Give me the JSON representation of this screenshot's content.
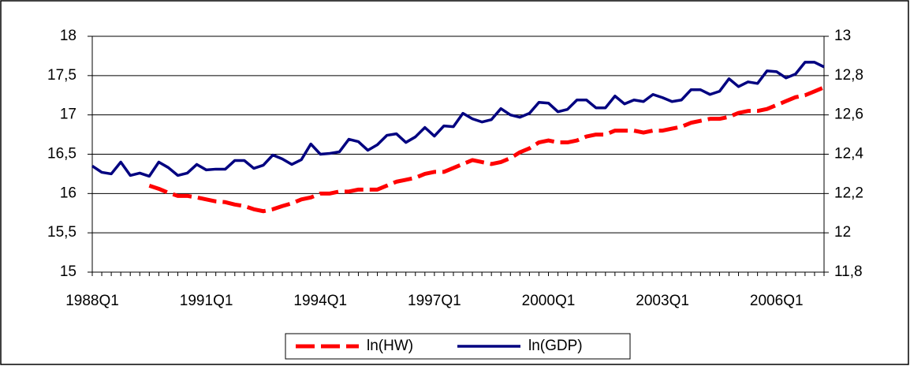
{
  "chart_data": {
    "type": "line",
    "categories": [
      "1988Q1",
      null,
      null,
      null,
      null,
      null,
      null,
      null,
      null,
      null,
      null,
      null,
      "1991Q1",
      null,
      null,
      null,
      null,
      null,
      null,
      null,
      null,
      null,
      null,
      null,
      "1994Q1",
      null,
      null,
      null,
      null,
      null,
      null,
      null,
      null,
      null,
      null,
      null,
      "1997Q1",
      null,
      null,
      null,
      null,
      null,
      null,
      null,
      null,
      null,
      null,
      null,
      "2000Q1",
      null,
      null,
      null,
      null,
      null,
      null,
      null,
      null,
      null,
      null,
      null,
      "2003Q1",
      null,
      null,
      null,
      null,
      null,
      null,
      null,
      null,
      null,
      null,
      null,
      "2006Q1",
      null,
      null,
      null,
      null,
      null
    ],
    "series": [
      {
        "name": "ln(HW)",
        "color": "#ff0000",
        "axis": "y2",
        "dashed": true,
        "values": [
          null,
          null,
          null,
          null,
          null,
          null,
          12.24,
          12.224,
          12.204,
          12.188,
          12.188,
          12.18,
          12.17,
          12.16,
          12.156,
          12.144,
          12.136,
          12.12,
          12.11,
          12.12,
          12.136,
          12.15,
          12.17,
          12.18,
          12.2,
          12.2,
          12.21,
          12.21,
          12.22,
          12.22,
          12.22,
          12.24,
          12.26,
          12.27,
          12.28,
          12.3,
          12.31,
          12.31,
          12.33,
          12.35,
          12.37,
          12.36,
          12.35,
          12.36,
          12.38,
          12.41,
          12.43,
          12.46,
          12.47,
          12.46,
          12.46,
          12.47,
          12.49,
          12.5,
          12.5,
          12.52,
          12.52,
          12.52,
          12.51,
          12.52,
          12.52,
          12.53,
          12.54,
          12.56,
          12.57,
          12.58,
          12.58,
          12.59,
          12.61,
          12.62,
          12.62,
          12.63,
          12.65,
          12.67,
          12.69,
          12.7,
          12.72,
          12.74
        ]
      },
      {
        "name": "ln(GDP)",
        "color": "#000080",
        "values": [
          16.35,
          16.27,
          16.25,
          16.4,
          16.23,
          16.26,
          16.22,
          16.4,
          16.33,
          16.23,
          16.26,
          16.37,
          16.3,
          16.31,
          16.31,
          16.42,
          16.42,
          16.32,
          16.36,
          16.49,
          16.44,
          16.37,
          16.43,
          16.63,
          16.5,
          16.51,
          16.53,
          16.69,
          16.66,
          16.55,
          16.62,
          16.74,
          16.76,
          16.65,
          16.72,
          16.84,
          16.73,
          16.86,
          16.85,
          17.02,
          16.95,
          16.91,
          16.94,
          17.08,
          17.0,
          16.97,
          17.02,
          17.16,
          17.15,
          17.04,
          17.07,
          17.19,
          17.19,
          17.09,
          17.09,
          17.24,
          17.14,
          17.19,
          17.17,
          17.26,
          17.22,
          17.17,
          17.19,
          17.32,
          17.32,
          17.26,
          17.3,
          17.46,
          17.36,
          17.42,
          17.4,
          17.56,
          17.55,
          17.47,
          17.52,
          17.67,
          17.67,
          17.61
        ]
      }
    ],
    "ylim": [
      15,
      18
    ],
    "yticks": [
      15,
      {
        "value": 15.5,
        "label": "15,5"
      },
      16,
      {
        "value": 16.5,
        "label": "16,5"
      },
      17,
      {
        "value": 17.5,
        "label": "17,5"
      },
      18
    ],
    "y2lim": [
      11.8,
      13
    ],
    "y2ticks": [
      {
        "value": 11.8,
        "label": "11,8"
      },
      12,
      {
        "value": 12.2,
        "label": "12,2"
      },
      {
        "value": 12.4,
        "label": "12,4"
      },
      {
        "value": 12.6,
        "label": "12,6"
      },
      {
        "value": 12.8,
        "label": "12,8"
      },
      13
    ],
    "grid": true,
    "legend": "bottom"
  }
}
